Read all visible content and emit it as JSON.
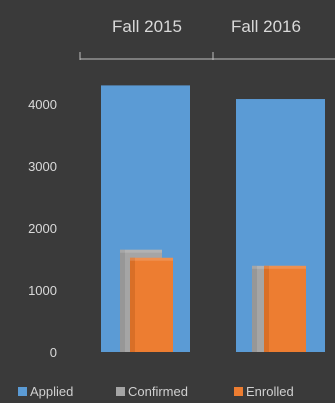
{
  "chart_data": {
    "type": "bar",
    "categories": [
      "Fall 2015",
      "Fall 2016"
    ],
    "series": [
      {
        "name": "Applied",
        "values": [
          4300,
          4080
        ],
        "color": "#5b9bd5"
      },
      {
        "name": "Confirmed",
        "values": [
          1650,
          1390
        ],
        "color": "#a5a5a5"
      },
      {
        "name": "Enrolled",
        "values": [
          1520,
          1390
        ],
        "color": "#ed7d31"
      }
    ],
    "ylim": [
      0,
      4500
    ],
    "y_ticks": [
      0,
      1000,
      2000,
      3000,
      4000
    ],
    "y_tick_labels": [
      "0",
      "1000",
      "2000",
      "3000",
      "4000"
    ],
    "x_axis_position": "top",
    "grid": false,
    "legend_position": "bottom",
    "background": "#3a3a3a",
    "text_color": "#d9d9d9"
  }
}
